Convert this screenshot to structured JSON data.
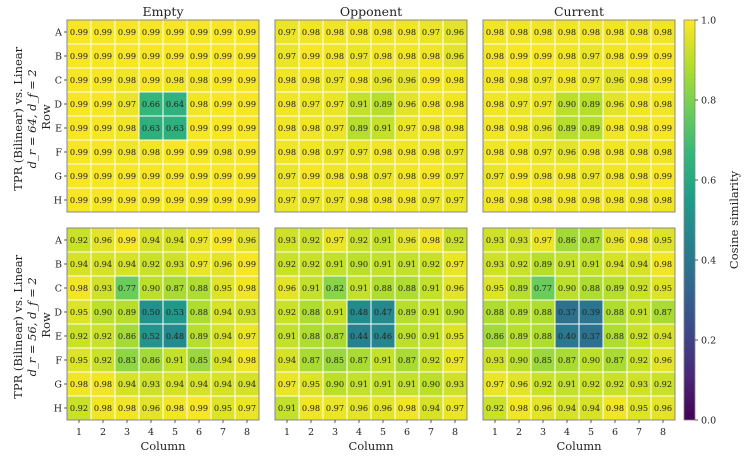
{
  "colors": {
    "stops": [
      "#440154",
      "#482878",
      "#3e4989",
      "#31688e",
      "#26828e",
      "#1f9e89",
      "#35b779",
      "#6ece58",
      "#b5de2b",
      "#fde725"
    ],
    "cell_border": "#ffffff",
    "frame": "#888888"
  },
  "chart_data": {
    "type": "heatmap",
    "columns": [
      "Empty",
      "Opponent",
      "Current"
    ],
    "row_group_labels": [
      {
        "line1": "TPR (Bilinear) vs. Linear",
        "line2": "d_r = 64, d_f = 2",
        "line3": "Row"
      },
      {
        "line1": "TPR (Bilinear) vs. Linear",
        "line2": "d_r = 56, d_f = 2",
        "line3": "Row"
      }
    ],
    "row_labels": [
      "A",
      "B",
      "C",
      "D",
      "E",
      "F",
      "G",
      "H"
    ],
    "col_labels": [
      "1",
      "2",
      "3",
      "4",
      "5",
      "6",
      "7",
      "8"
    ],
    "xlabel": "Column",
    "colorbar": {
      "label": "Cosine similarity",
      "range": [
        0.0,
        1.0
      ],
      "ticks": [
        "0.0",
        "0.2",
        "0.4",
        "0.6",
        "0.8",
        "1.0"
      ],
      "cmap": "viridis"
    },
    "panels": [
      {
        "title": "Empty",
        "values": [
          [
            0.99,
            0.99,
            0.99,
            0.99,
            0.99,
            0.99,
            0.99,
            0.99
          ],
          [
            0.99,
            0.99,
            0.99,
            0.99,
            0.99,
            0.99,
            0.99,
            0.99
          ],
          [
            0.99,
            0.99,
            0.98,
            0.99,
            0.98,
            0.98,
            0.99,
            0.99
          ],
          [
            0.99,
            0.99,
            0.97,
            0.66,
            0.64,
            0.98,
            0.99,
            0.99
          ],
          [
            0.99,
            0.99,
            0.98,
            0.63,
            0.63,
            0.99,
            0.99,
            0.99
          ],
          [
            0.99,
            0.99,
            0.98,
            0.98,
            0.99,
            0.99,
            0.98,
            0.99
          ],
          [
            0.99,
            0.99,
            0.99,
            0.99,
            0.99,
            0.99,
            0.99,
            0.99
          ],
          [
            0.99,
            0.99,
            0.99,
            0.99,
            0.99,
            0.99,
            0.99,
            0.99
          ]
        ]
      },
      {
        "title": "Opponent",
        "values": [
          [
            0.97,
            0.98,
            0.98,
            0.98,
            0.98,
            0.98,
            0.97,
            0.96
          ],
          [
            0.97,
            0.99,
            0.98,
            0.97,
            0.98,
            0.98,
            0.98,
            0.96
          ],
          [
            0.98,
            0.98,
            0.97,
            0.98,
            0.96,
            0.96,
            0.99,
            0.98
          ],
          [
            0.98,
            0.97,
            0.97,
            0.91,
            0.89,
            0.96,
            0.98,
            0.98
          ],
          [
            0.98,
            0.98,
            0.97,
            0.89,
            0.91,
            0.97,
            0.98,
            0.98
          ],
          [
            0.98,
            0.98,
            0.97,
            0.97,
            0.98,
            0.98,
            0.98,
            0.97
          ],
          [
            0.97,
            0.99,
            0.98,
            0.98,
            0.97,
            0.98,
            0.99,
            0.97
          ],
          [
            0.97,
            0.97,
            0.97,
            0.98,
            0.98,
            0.98,
            0.97,
            0.97
          ]
        ]
      },
      {
        "title": "Current",
        "values": [
          [
            0.98,
            0.98,
            0.98,
            0.98,
            0.98,
            0.98,
            0.98,
            0.98
          ],
          [
            0.98,
            0.99,
            0.99,
            0.98,
            0.97,
            0.98,
            0.99,
            0.99
          ],
          [
            0.98,
            0.98,
            0.97,
            0.98,
            0.97,
            0.96,
            0.98,
            0.99
          ],
          [
            0.98,
            0.97,
            0.97,
            0.9,
            0.89,
            0.96,
            0.98,
            0.98
          ],
          [
            0.98,
            0.98,
            0.96,
            0.89,
            0.89,
            0.98,
            0.98,
            0.99
          ],
          [
            0.98,
            0.98,
            0.97,
            0.96,
            0.98,
            0.98,
            0.98,
            0.98
          ],
          [
            0.97,
            0.99,
            0.98,
            0.98,
            0.97,
            0.98,
            0.98,
            0.99
          ],
          [
            0.98,
            0.98,
            0.98,
            0.98,
            0.98,
            0.98,
            0.98,
            0.98
          ]
        ]
      },
      {
        "title": "",
        "values": [
          [
            0.92,
            0.96,
            0.99,
            0.94,
            0.94,
            0.97,
            0.99,
            0.96
          ],
          [
            0.94,
            0.94,
            0.94,
            0.92,
            0.93,
            0.97,
            0.96,
            0.99
          ],
          [
            0.98,
            0.93,
            0.77,
            0.9,
            0.87,
            0.88,
            0.95,
            0.98
          ],
          [
            0.95,
            0.9,
            0.89,
            0.5,
            0.53,
            0.88,
            0.94,
            0.93
          ],
          [
            0.92,
            0.92,
            0.86,
            0.52,
            0.48,
            0.89,
            0.94,
            0.97
          ],
          [
            0.95,
            0.92,
            0.83,
            0.86,
            0.91,
            0.85,
            0.94,
            0.98
          ],
          [
            0.98,
            0.98,
            0.94,
            0.93,
            0.94,
            0.94,
            0.94,
            0.94
          ],
          [
            0.92,
            0.98,
            0.98,
            0.96,
            0.98,
            0.99,
            0.95,
            0.97
          ]
        ]
      },
      {
        "title": "",
        "values": [
          [
            0.93,
            0.92,
            0.97,
            0.92,
            0.91,
            0.96,
            0.98,
            0.92
          ],
          [
            0.92,
            0.92,
            0.91,
            0.9,
            0.91,
            0.91,
            0.92,
            0.97
          ],
          [
            0.96,
            0.91,
            0.82,
            0.91,
            0.88,
            0.88,
            0.91,
            0.96
          ],
          [
            0.92,
            0.88,
            0.91,
            0.48,
            0.47,
            0.89,
            0.91,
            0.9
          ],
          [
            0.91,
            0.88,
            0.87,
            0.44,
            0.46,
            0.9,
            0.91,
            0.95
          ],
          [
            0.94,
            0.87,
            0.85,
            0.87,
            0.91,
            0.87,
            0.92,
            0.97
          ],
          [
            0.97,
            0.95,
            0.9,
            0.91,
            0.91,
            0.91,
            0.9,
            0.93
          ],
          [
            0.91,
            0.98,
            0.97,
            0.96,
            0.96,
            0.98,
            0.94,
            0.97
          ]
        ]
      },
      {
        "title": "",
        "values": [
          [
            0.93,
            0.93,
            0.97,
            0.86,
            0.87,
            0.96,
            0.98,
            0.95
          ],
          [
            0.93,
            0.92,
            0.89,
            0.91,
            0.91,
            0.94,
            0.94,
            0.98
          ],
          [
            0.95,
            0.89,
            0.77,
            0.9,
            0.88,
            0.89,
            0.92,
            0.95
          ],
          [
            0.88,
            0.89,
            0.88,
            0.37,
            0.39,
            0.88,
            0.91,
            0.87
          ],
          [
            0.86,
            0.89,
            0.88,
            0.4,
            0.37,
            0.88,
            0.92,
            0.94
          ],
          [
            0.93,
            0.9,
            0.85,
            0.87,
            0.9,
            0.87,
            0.92,
            0.96
          ],
          [
            0.97,
            0.96,
            0.92,
            0.91,
            0.92,
            0.92,
            0.93,
            0.92
          ],
          [
            0.92,
            0.98,
            0.96,
            0.94,
            0.94,
            0.98,
            0.95,
            0.96
          ]
        ]
      }
    ]
  }
}
